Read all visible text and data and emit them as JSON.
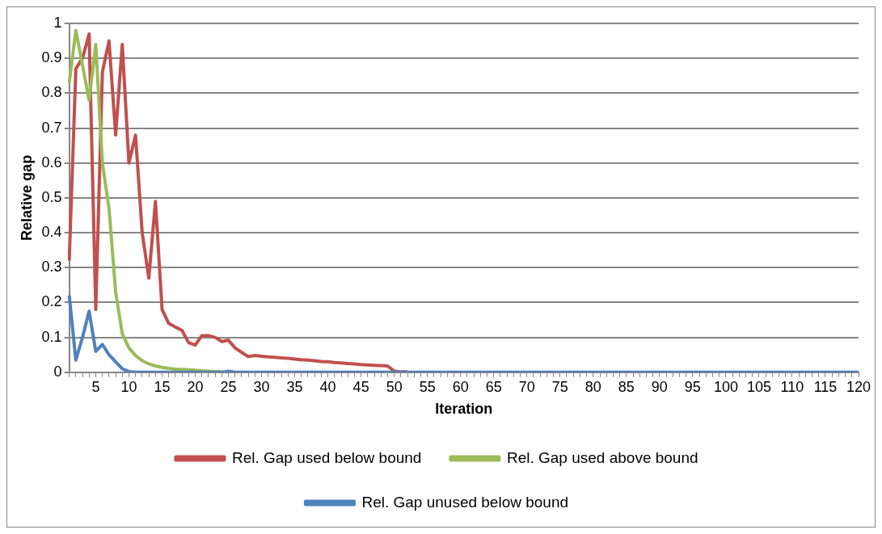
{
  "chart_data": {
    "type": "line",
    "xlabel": "Iteration",
    "ylabel": "Relative gap",
    "ylim": [
      0,
      1
    ],
    "yticks": [
      0,
      0.1,
      0.2,
      0.3,
      0.4,
      0.5,
      0.6,
      0.7,
      0.8,
      0.9,
      1
    ],
    "grid": "y",
    "legend": "bottom",
    "categories": [
      null,
      null,
      null,
      null,
      "5",
      null,
      null,
      null,
      null,
      "10",
      null,
      null,
      null,
      null,
      "15",
      null,
      null,
      null,
      null,
      "20",
      null,
      null,
      null,
      null,
      "25",
      null,
      null,
      null,
      null,
      "30",
      null,
      null,
      null,
      null,
      "35",
      null,
      null,
      null,
      null,
      "40",
      null,
      null,
      null,
      null,
      "45",
      null,
      null,
      null,
      null,
      "50",
      null,
      null,
      null,
      null,
      "55",
      null,
      null,
      null,
      null,
      "60",
      null,
      null,
      null,
      null,
      "65",
      null,
      null,
      null,
      null,
      "70",
      null,
      null,
      null,
      null,
      "75",
      null,
      null,
      null,
      null,
      "80",
      null,
      null,
      null,
      null,
      "85",
      null,
      null,
      null,
      null,
      "90",
      null,
      null,
      null,
      null,
      "95",
      null,
      null,
      null,
      null,
      "100",
      null,
      null,
      null,
      null,
      "105",
      null,
      null,
      null,
      null,
      "110",
      null,
      null,
      null,
      null,
      "115",
      null,
      null,
      null,
      null,
      "120"
    ],
    "series": [
      {
        "name": "Rel. Gap used below bound",
        "color": "#c0504d",
        "values": [
          0.32,
          0.87,
          0.9,
          0.97,
          0.18,
          0.86,
          0.95,
          0.68,
          0.94,
          0.6,
          0.68,
          0.4,
          0.27,
          0.49,
          0.18,
          0.14,
          0.13,
          0.12,
          0.085,
          0.078,
          0.105,
          0.105,
          0.1,
          0.088,
          0.092,
          0.07,
          0.057,
          0.045,
          0.048,
          0.046,
          0.044,
          0.043,
          0.041,
          0.04,
          0.038,
          0.036,
          0.035,
          0.033,
          0.031,
          0.03,
          0.028,
          0.027,
          0.025,
          0.024,
          0.022,
          0.021,
          0.02,
          0.019,
          0.018,
          0.003,
          0.001,
          0.001,
          null,
          null,
          null,
          null,
          null,
          null,
          null,
          null,
          null,
          null,
          null,
          null,
          null,
          null,
          null,
          null,
          null,
          null,
          null,
          null,
          null,
          null,
          null,
          null,
          null,
          null,
          null,
          null,
          null,
          null,
          null,
          null,
          null,
          null,
          null,
          null,
          null,
          null,
          null,
          null,
          null,
          null,
          null,
          null,
          null,
          null,
          null,
          null,
          null,
          null,
          null,
          null,
          null,
          null,
          null,
          null,
          null,
          null,
          null,
          null,
          null,
          null,
          null,
          null,
          null,
          null,
          null,
          null
        ]
      },
      {
        "name": "Rel. Gap used above bound",
        "color": "#9bbb59",
        "values": [
          0.83,
          0.98,
          0.88,
          0.78,
          0.94,
          0.6,
          0.47,
          0.23,
          0.11,
          0.07,
          0.048,
          0.033,
          0.024,
          0.018,
          0.014,
          0.011,
          0.009,
          0.008,
          0.007,
          0.006,
          0.004,
          0.003,
          0.002,
          0.001,
          null,
          null,
          null,
          null,
          null,
          null,
          null,
          null,
          null,
          null,
          null,
          null,
          null,
          null,
          null,
          null,
          null,
          null,
          null,
          null,
          null,
          null,
          null,
          null,
          null,
          null,
          null,
          null,
          null,
          null,
          null,
          null,
          null,
          null,
          null,
          null,
          null,
          null,
          null,
          null,
          null,
          null,
          null,
          null,
          null,
          null,
          null,
          null,
          null,
          null,
          null,
          null,
          null,
          null,
          null,
          null,
          null,
          null,
          null,
          null,
          null,
          null,
          null,
          null,
          null,
          null,
          null,
          null,
          null,
          null,
          null,
          null,
          null,
          null,
          null,
          null,
          null,
          null,
          null,
          null,
          null,
          null,
          null,
          null,
          null,
          null,
          null,
          null,
          null,
          null,
          null,
          null,
          null,
          null,
          null,
          null
        ]
      },
      {
        "name": "Rel. Gap unused below bound",
        "color": "#4f81bd",
        "values": [
          0.22,
          0.035,
          0.1,
          0.175,
          0.06,
          0.08,
          0.05,
          0.03,
          0.01,
          0.002,
          0,
          0,
          0,
          0,
          0,
          0,
          0,
          0,
          0,
          0,
          0,
          0,
          0,
          0,
          0.003,
          0,
          0,
          0,
          0,
          0,
          0,
          0,
          0,
          0,
          0,
          0,
          0,
          0,
          0,
          0,
          0,
          0,
          0,
          0,
          0,
          0,
          0,
          0,
          0,
          0,
          0,
          0,
          0,
          0,
          0,
          0,
          0,
          0,
          0,
          0,
          0,
          0,
          0,
          0,
          0,
          0,
          0,
          0,
          0,
          0,
          0,
          0,
          0,
          0,
          0,
          0,
          0,
          0,
          0,
          0,
          0,
          0,
          0,
          0,
          0,
          0,
          0,
          0,
          0,
          0,
          0,
          0,
          0,
          0,
          0,
          0,
          0,
          0,
          0,
          0,
          0,
          0,
          0,
          0,
          0,
          0,
          0,
          0,
          0,
          0,
          0,
          0,
          0,
          0,
          0,
          0,
          0,
          0,
          0,
          0
        ]
      }
    ]
  }
}
